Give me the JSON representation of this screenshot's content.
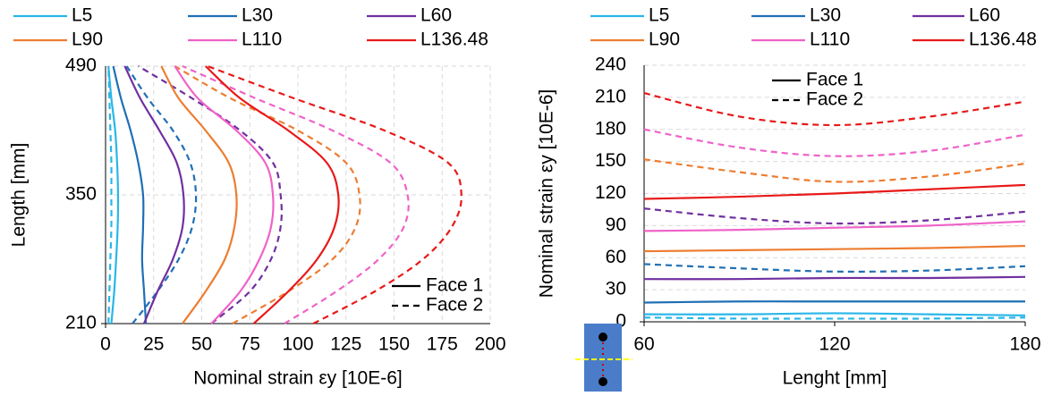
{
  "chart_data": [
    {
      "type": "line",
      "orientation": "horizontal",
      "xlabel": "Nominal strain εy [10E-6]",
      "ylabel": "Length [mm]",
      "y": [
        210,
        245,
        280,
        315,
        350,
        385,
        420,
        455,
        490
      ],
      "xlim": [
        0,
        200
      ],
      "xticks": [
        0,
        25,
        50,
        75,
        100,
        125,
        150,
        175,
        200
      ],
      "ylim": [
        210,
        490
      ],
      "yticks": [
        210,
        350,
        490
      ],
      "grid": true,
      "faces": [
        "Face 1",
        "Face 2"
      ],
      "face_legend": "lower right",
      "series": [
        {
          "name": "L5",
          "color": "#29b6e8",
          "faces": [
            [
              3,
              4.5,
              5.5,
              6.3,
              6.5,
              6,
              5,
              3,
              1.5
            ],
            [
              1.5,
              2,
              2.5,
              3,
              3,
              3,
              2.5,
              2,
              1.5
            ]
          ]
        },
        {
          "name": "L30",
          "color": "#1f6fb5",
          "faces": [
            [
              21,
              20,
              19,
              19.5,
              19.5,
              17,
              13,
              8,
              4
            ],
            [
              14,
              27,
              38,
              45,
              47,
              44,
              35,
              22,
              11
            ]
          ]
        },
        {
          "name": "L60",
          "color": "#7030a0",
          "faces": [
            [
              20,
              27,
              35,
              40,
              40.5,
              37,
              28,
              18,
              10
            ],
            [
              55,
              75,
              86,
              91,
              91,
              87,
              70,
              45,
              17
            ]
          ]
        },
        {
          "name": "L90",
          "color": "#ed7d31",
          "faces": [
            [
              40,
              52,
              62,
              67,
              68,
              64,
              52,
              38,
              29
            ],
            [
              66,
              95,
              118,
              130,
              132,
              125,
              100,
              65,
              36
            ]
          ]
        },
        {
          "name": "L110",
          "color": "#f062c8",
          "faces": [
            [
              55,
              70,
              80,
              86,
              87,
              83,
              68,
              48,
              36
            ],
            [
              93,
              120,
              142,
              155,
              157,
              148,
              118,
              78,
              40
            ]
          ]
        },
        {
          "name": "L136.48",
          "color": "#e81919",
          "faces": [
            [
              77,
              95,
              110,
              119,
              121,
              115,
              95,
              70,
              52
            ],
            [
              108,
              140,
              165,
              180,
              185,
              178,
              145,
              98,
              53
            ]
          ]
        }
      ]
    },
    {
      "type": "line",
      "orientation": "vertical",
      "xlabel": "Lenght [mm]",
      "ylabel": "Nominal strain εy [10E-6]",
      "x": [
        60,
        90,
        120,
        150,
        180
      ],
      "xlim": [
        60,
        180
      ],
      "xticks": [
        60,
        120,
        180
      ],
      "ylim": [
        0,
        240
      ],
      "yticks": [
        0,
        30,
        60,
        90,
        120,
        150,
        180,
        210,
        240
      ],
      "grid": true,
      "faces": [
        "Face 1",
        "Face 2"
      ],
      "face_legend": "upper center",
      "series": [
        {
          "name": "L5",
          "color": "#29b6e8",
          "faces": [
            [
              7,
              7,
              8,
              7,
              6
            ],
            [
              4,
              3,
              3,
              3,
              4
            ]
          ]
        },
        {
          "name": "L30",
          "color": "#1f6fb5",
          "faces": [
            [
              18,
              19,
              19,
              19,
              19
            ],
            [
              54,
              50,
              47,
              48,
              52
            ]
          ]
        },
        {
          "name": "L60",
          "color": "#7030a0",
          "faces": [
            [
              40,
              40,
              41,
              41,
              42
            ],
            [
              106,
              97,
              92,
              95,
              103
            ]
          ]
        },
        {
          "name": "L90",
          "color": "#ed7d31",
          "faces": [
            [
              66,
              67,
              68,
              69,
              71
            ],
            [
              152,
              140,
              131,
              136,
              148
            ]
          ]
        },
        {
          "name": "L110",
          "color": "#f062c8",
          "faces": [
            [
              85,
              86,
              88,
              90,
              94
            ],
            [
              180,
              163,
              155,
              160,
              175
            ]
          ]
        },
        {
          "name": "L136.48",
          "color": "#e81919",
          "faces": [
            [
              115,
              117,
              120,
              124,
              128
            ],
            [
              214,
              192,
              184,
              192,
              206
            ]
          ]
        }
      ]
    }
  ]
}
